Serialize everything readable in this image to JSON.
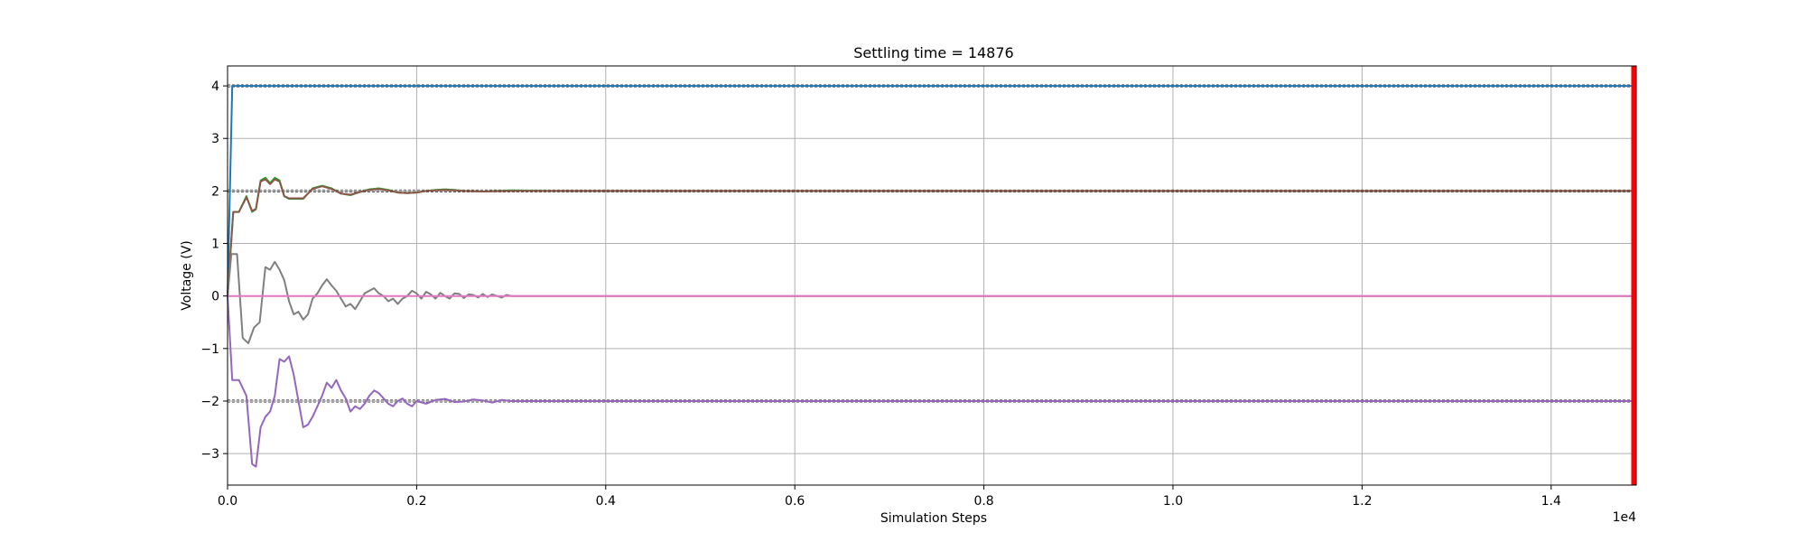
{
  "chart_data": {
    "type": "line",
    "title": "Settling time = 14876",
    "xlabel": "Simulation Steps",
    "ylabel": "Voltage (V)",
    "x_offset_label": "1e4",
    "xlim": [
      0,
      14900
    ],
    "ylim": [
      -3.6,
      4.38
    ],
    "x_ticks": [
      0,
      2000,
      4000,
      6000,
      8000,
      10000,
      12000,
      14000
    ],
    "x_tick_labels": [
      "0.0",
      "0.2",
      "0.4",
      "0.6",
      "0.8",
      "1.0",
      "1.2",
      "1.4"
    ],
    "y_ticks": [
      -3,
      -2,
      -1,
      0,
      1,
      2,
      3,
      4
    ],
    "y_tick_labels": [
      "−3",
      "−2",
      "−1",
      "0",
      "1",
      "2",
      "3",
      "4"
    ],
    "grid": true,
    "settling_time": 14876,
    "settling_marker_color": "#ff0000",
    "reference_bands": [
      {
        "center": 4,
        "lower": 3.98,
        "upper": 4.02
      },
      {
        "center": 2,
        "lower": 1.98,
        "upper": 2.02
      },
      {
        "center": -2,
        "lower": -2.02,
        "upper": -1.98
      }
    ],
    "series": [
      {
        "color": "#1f77b4",
        "x": [
          0,
          50,
          14900
        ],
        "y": [
          0,
          4,
          4
        ]
      },
      {
        "color": "#2ca02c",
        "x": [
          0,
          60,
          120,
          200,
          260,
          300,
          350,
          400,
          450,
          500,
          550,
          600,
          650,
          700,
          800,
          900,
          1000,
          1100,
          1200,
          1300,
          1400,
          1500,
          1600,
          1700,
          1800,
          1900,
          2000,
          2100,
          2200,
          2300,
          2400,
          2500,
          2700,
          3000,
          3400,
          4000,
          14900
        ],
        "y": [
          0,
          1.6,
          1.6,
          1.9,
          1.6,
          1.65,
          2.2,
          2.25,
          2.15,
          2.25,
          2.2,
          1.9,
          1.85,
          1.85,
          1.85,
          2.05,
          2.1,
          2.05,
          1.95,
          1.92,
          1.98,
          2.03,
          2.05,
          2.02,
          1.97,
          1.96,
          1.97,
          2.0,
          2.02,
          2.03,
          2.02,
          2.0,
          1.99,
          2.01,
          2.0,
          2.0,
          2.0
        ]
      },
      {
        "color": "#8c564b",
        "x": [
          0,
          60,
          120,
          200,
          260,
          300,
          350,
          400,
          450,
          500,
          550,
          600,
          650,
          700,
          800,
          900,
          1000,
          1100,
          1200,
          1300,
          1400,
          1500,
          1600,
          1700,
          1800,
          1900,
          2000,
          2100,
          2200,
          2300,
          2400,
          2500,
          2700,
          3000,
          3400,
          4000,
          14900
        ],
        "y": [
          0,
          1.6,
          1.6,
          1.88,
          1.62,
          1.66,
          2.18,
          2.22,
          2.13,
          2.22,
          2.18,
          1.9,
          1.86,
          1.86,
          1.86,
          2.04,
          2.09,
          2.04,
          1.95,
          1.93,
          1.98,
          2.02,
          2.04,
          2.01,
          1.97,
          1.96,
          1.97,
          2.0,
          2.01,
          2.02,
          2.01,
          2.0,
          1.99,
          2.0,
          2.0,
          2.0,
          2.0
        ]
      },
      {
        "color": "#7f7f7f",
        "x": [
          0,
          40,
          100,
          160,
          220,
          280,
          340,
          400,
          450,
          500,
          550,
          600,
          650,
          700,
          750,
          800,
          850,
          900,
          950,
          1000,
          1050,
          1100,
          1150,
          1200,
          1250,
          1300,
          1350,
          1400,
          1450,
          1500,
          1550,
          1600,
          1650,
          1700,
          1750,
          1800,
          1850,
          1900,
          1950,
          2000,
          2050,
          2100,
          2150,
          2200,
          2250,
          2300,
          2350,
          2400,
          2450,
          2500,
          2550,
          2600,
          2650,
          2700,
          2750,
          2800,
          2850,
          2900,
          2950,
          3000,
          3500,
          4000,
          14900
        ],
        "y": [
          0,
          0.8,
          0.8,
          -0.8,
          -0.9,
          -0.6,
          -0.5,
          0.55,
          0.5,
          0.65,
          0.5,
          0.3,
          -0.1,
          -0.35,
          -0.3,
          -0.45,
          -0.35,
          -0.05,
          0.05,
          0.2,
          0.32,
          0.2,
          0.1,
          -0.05,
          -0.2,
          -0.15,
          -0.25,
          -0.1,
          0.05,
          0.1,
          0.15,
          0.05,
          0.0,
          -0.1,
          -0.05,
          -0.15,
          -0.05,
          0.0,
          0.1,
          0.05,
          -0.05,
          0.08,
          0.03,
          -0.05,
          0.06,
          0.0,
          -0.05,
          0.05,
          0.04,
          -0.04,
          0.03,
          0.02,
          -0.03,
          0.04,
          -0.02,
          0.03,
          0.0,
          -0.03,
          0.02,
          0.0,
          0.0,
          0.0,
          0.0
        ]
      },
      {
        "color": "#e377c2",
        "x": [
          0,
          14900
        ],
        "y": [
          0,
          0
        ]
      },
      {
        "color": "#9467bd",
        "x": [
          0,
          50,
          120,
          200,
          260,
          300,
          350,
          400,
          450,
          500,
          550,
          600,
          650,
          700,
          750,
          800,
          850,
          900,
          950,
          1000,
          1050,
          1100,
          1150,
          1200,
          1250,
          1300,
          1350,
          1400,
          1450,
          1500,
          1550,
          1600,
          1650,
          1700,
          1750,
          1800,
          1850,
          1900,
          1950,
          2000,
          2100,
          2200,
          2300,
          2400,
          2500,
          2600,
          2700,
          2800,
          2900,
          3000,
          3500,
          4000,
          14900
        ],
        "y": [
          0,
          -1.6,
          -1.6,
          -1.9,
          -3.2,
          -3.25,
          -2.5,
          -2.3,
          -2.2,
          -1.9,
          -1.2,
          -1.25,
          -1.15,
          -1.5,
          -2.0,
          -2.5,
          -2.45,
          -2.3,
          -2.1,
          -1.9,
          -1.65,
          -1.75,
          -1.6,
          -1.8,
          -1.95,
          -2.2,
          -2.1,
          -2.15,
          -2.05,
          -1.9,
          -1.8,
          -1.85,
          -1.95,
          -2.05,
          -2.1,
          -2.0,
          -1.95,
          -2.05,
          -2.1,
          -2.0,
          -2.05,
          -1.98,
          -1.96,
          -2.02,
          -2.01,
          -1.97,
          -1.99,
          -2.03,
          -1.98,
          -2.0,
          -2.0,
          -2.0,
          -2.0
        ]
      }
    ]
  }
}
